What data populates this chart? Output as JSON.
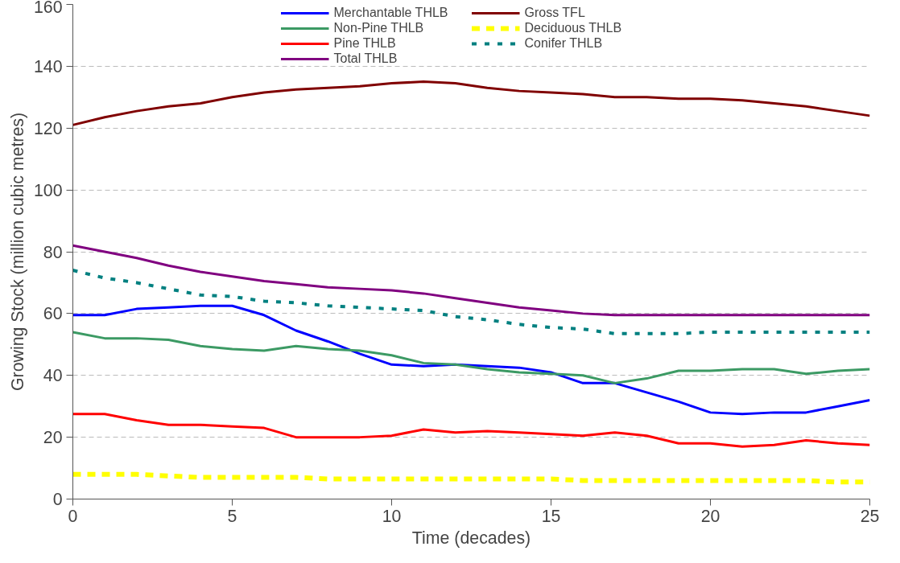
{
  "chart_data": {
    "type": "line",
    "xlabel": "Time (decades)",
    "ylabel": "Growing Stock (million cubic metres)",
    "x": [
      0,
      1,
      2,
      3,
      4,
      5,
      6,
      7,
      8,
      9,
      10,
      11,
      12,
      13,
      14,
      15,
      16,
      17,
      18,
      19,
      20,
      21,
      22,
      23,
      24,
      25
    ],
    "xlim": [
      0,
      25
    ],
    "xticks": [
      0,
      5,
      10,
      15,
      20,
      25
    ],
    "ylim": [
      0,
      160
    ],
    "yticks": [
      0,
      20,
      40,
      60,
      80,
      100,
      120,
      140,
      160
    ],
    "grid": "y",
    "legend": "top",
    "series": [
      {
        "name": "Merchantable THLB",
        "color": "#0000ff",
        "line_style": "solid",
        "values": [
          59.5,
          59.5,
          61.5,
          62,
          62.5,
          62.5,
          59.5,
          54.5,
          51,
          47,
          43.5,
          43,
          43.5,
          43,
          42.5,
          41,
          37.5,
          37.5,
          34.5,
          31.5,
          28,
          27.5,
          28,
          28,
          30,
          32
        ]
      },
      {
        "name": "Non-Pine THLB",
        "color": "#3c9a64",
        "line_style": "solid",
        "values": [
          54,
          52,
          52,
          51.5,
          49.5,
          48.5,
          48,
          49.5,
          48.5,
          48,
          46.5,
          44,
          43.5,
          42,
          41,
          40.5,
          40,
          37.5,
          39,
          41.5,
          41.5,
          42,
          42,
          40.5,
          41.5,
          42
        ]
      },
      {
        "name": "Pine THLB",
        "color": "#ff0000",
        "line_style": "solid",
        "values": [
          27.5,
          27.5,
          25.5,
          24,
          24,
          23.5,
          23,
          20,
          20,
          20,
          20.5,
          22.5,
          21.5,
          22,
          21.5,
          21,
          20.5,
          21.5,
          20.5,
          18,
          18,
          17,
          17.5,
          19,
          18,
          17.5
        ]
      },
      {
        "name": "Total THLB",
        "color": "#800080",
        "line_style": "solid",
        "values": [
          82,
          80,
          78,
          75.5,
          73.5,
          72,
          70.5,
          69.5,
          68.5,
          68,
          67.5,
          66.5,
          65,
          63.5,
          62,
          61,
          60,
          59.5,
          59.5,
          59.5,
          59.5,
          59.5,
          59.5,
          59.5,
          59.5,
          59.5
        ]
      },
      {
        "name": "Gross TFL",
        "color": "#800000",
        "line_style": "solid",
        "values": [
          121,
          123.5,
          125.5,
          127,
          128,
          130,
          131.5,
          132.5,
          133,
          133.5,
          134.5,
          135,
          134.5,
          133,
          132,
          131.5,
          131,
          130,
          130,
          129.5,
          129.5,
          129,
          128,
          127,
          125.5,
          124
        ]
      },
      {
        "name": "Deciduous THLB",
        "color": "#ffff00",
        "line_style": "dashed",
        "values": [
          8,
          8,
          8,
          7.5,
          7,
          7,
          7,
          7,
          6.5,
          6.5,
          6.5,
          6.5,
          6.5,
          6.5,
          6.5,
          6.5,
          6,
          6,
          6,
          6,
          6,
          6,
          6,
          6,
          5.5,
          5.5
        ]
      },
      {
        "name": "Conifer THLB",
        "color": "#008080",
        "line_style": "dotted",
        "values": [
          74,
          71.5,
          70,
          68,
          66,
          65.5,
          64,
          63.5,
          62.5,
          62,
          61.5,
          61,
          59,
          58,
          56.5,
          55.5,
          55,
          53.5,
          53.5,
          53.5,
          54,
          54,
          54,
          54,
          54,
          54
        ]
      }
    ]
  }
}
